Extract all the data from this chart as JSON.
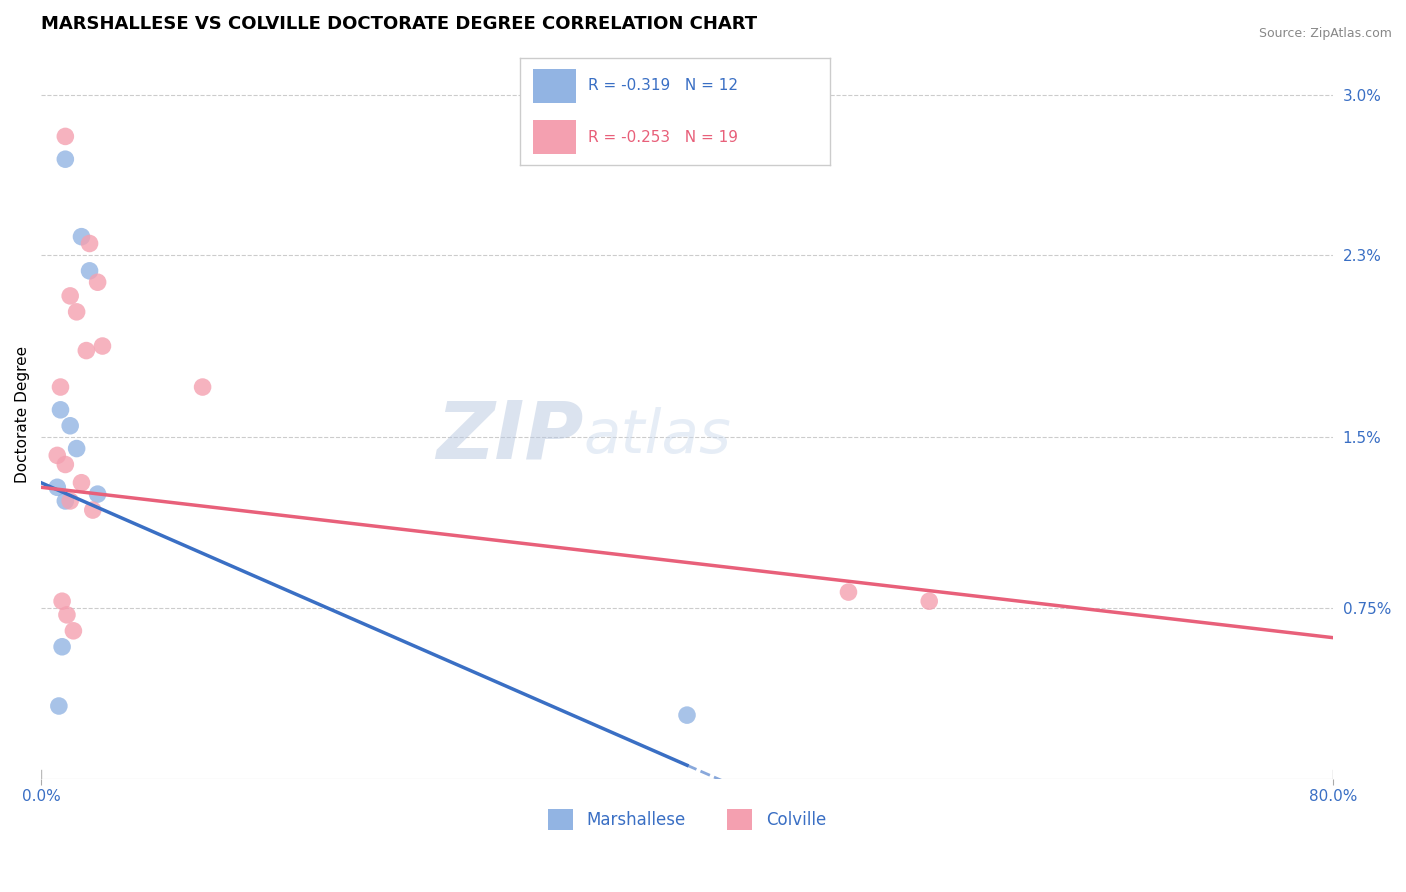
{
  "title": "MARSHALLESE VS COLVILLE DOCTORATE DEGREE CORRELATION CHART",
  "source": "Source: ZipAtlas.com",
  "ylabel": "Doctorate Degree",
  "xlim": [
    0.0,
    80.0
  ],
  "ylim": [
    0.0,
    3.2
  ],
  "ytick_positions": [
    0.75,
    1.5,
    2.3,
    3.0
  ],
  "ytick_labels": [
    "0.75%",
    "1.5%",
    "2.3%",
    "3.0%"
  ],
  "grid_color": "#cccccc",
  "background_color": "#ffffff",
  "marshallese_color": "#92b4e3",
  "colville_color": "#f4a0b0",
  "marshallese_line_color": "#3a6fc4",
  "colville_line_color": "#e8607a",
  "legend_r_marshallese": "R = -0.319",
  "legend_n_marshallese": "N = 12",
  "legend_r_colville": "R = -0.253",
  "legend_n_colville": "N = 19",
  "marshallese_x": [
    1.5,
    2.5,
    3.0,
    1.2,
    1.8,
    2.2,
    1.0,
    1.5,
    3.5,
    1.3,
    1.1,
    40.0
  ],
  "marshallese_y": [
    2.72,
    2.38,
    2.23,
    1.62,
    1.55,
    1.45,
    1.28,
    1.22,
    1.25,
    0.58,
    0.32,
    0.28
  ],
  "colville_x": [
    1.5,
    3.0,
    3.5,
    1.8,
    2.2,
    3.8,
    2.8,
    1.2,
    1.0,
    1.5,
    2.5,
    1.8,
    3.2,
    10.0,
    1.3,
    1.6,
    2.0,
    50.0,
    55.0
  ],
  "colville_y": [
    2.82,
    2.35,
    2.18,
    2.12,
    2.05,
    1.9,
    1.88,
    1.72,
    1.42,
    1.38,
    1.3,
    1.22,
    1.18,
    1.72,
    0.78,
    0.72,
    0.65,
    0.82,
    0.78
  ],
  "blue_line_x_start": 0.0,
  "blue_line_y_start": 1.3,
  "blue_line_x_solid_end": 40.0,
  "blue_line_x_dash_end": 55.0,
  "blue_line_slope": -0.031,
  "pink_line_x_start": 0.0,
  "pink_line_x_end": 80.0,
  "pink_line_y_start": 1.28,
  "pink_line_y_end": 0.62,
  "watermark_text": "ZIPatlas",
  "title_fontsize": 13,
  "axis_label_fontsize": 11,
  "tick_fontsize": 11,
  "legend_fontsize": 11,
  "marker_size": 160
}
